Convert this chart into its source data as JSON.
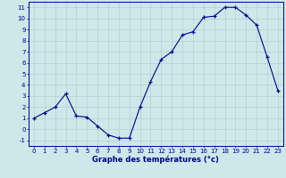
{
  "hours": [
    0,
    1,
    2,
    3,
    4,
    5,
    6,
    7,
    8,
    9,
    10,
    11,
    12,
    13,
    14,
    15,
    16,
    17,
    18,
    19,
    20,
    21,
    22,
    23
  ],
  "temps": [
    1.0,
    1.5,
    2.0,
    3.2,
    1.2,
    1.1,
    0.3,
    -0.5,
    -0.8,
    -0.8,
    2.0,
    4.3,
    6.3,
    7.0,
    8.5,
    8.8,
    10.1,
    10.2,
    11.0,
    11.0,
    10.3,
    9.4,
    6.5,
    3.5
  ],
  "line_color": "#00008B",
  "marker": "+",
  "bg_color": "#cce8e8",
  "grid_color": "#aacccc",
  "xlabel": "Graphe des températures (°c)",
  "xlabel_color": "#00008B",
  "ylim": [
    -1.5,
    11.5
  ],
  "xlim": [
    -0.5,
    23.5
  ],
  "yticks": [
    -1,
    0,
    1,
    2,
    3,
    4,
    5,
    6,
    7,
    8,
    9,
    10,
    11
  ],
  "xticks": [
    0,
    1,
    2,
    3,
    4,
    5,
    6,
    7,
    8,
    9,
    10,
    11,
    12,
    13,
    14,
    15,
    16,
    17,
    18,
    19,
    20,
    21,
    22,
    23
  ],
  "tick_color": "#00008B",
  "axis_color": "#00008B",
  "tick_fontsize": 5.0,
  "xlabel_fontsize": 6.0
}
